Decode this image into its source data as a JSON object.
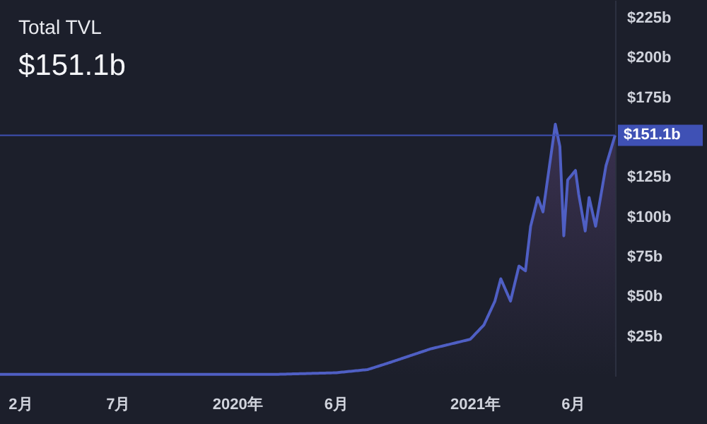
{
  "chart_data": {
    "type": "area",
    "title": "Total TVL",
    "subtitle": "$151.1b",
    "x": [
      "2019-01-01",
      "2019-07-01",
      "2020-01-01",
      "2020-03-01",
      "2020-06-01",
      "2020-07-20",
      "2020-08-20",
      "2020-10-25",
      "2020-12-25",
      "2021-01-15",
      "2021-02-01",
      "2021-02-10",
      "2021-02-25",
      "2021-03-10",
      "2021-03-20",
      "2021-03-28",
      "2021-04-08",
      "2021-04-16",
      "2021-05-05",
      "2021-05-12",
      "2021-05-18",
      "2021-05-24",
      "2021-06-05",
      "2021-06-10",
      "2021-06-20",
      "2021-06-26",
      "2021-07-06",
      "2021-07-22",
      "2021-08-05"
    ],
    "series": [
      {
        "color": "#4f5fc4",
        "values": [
          1,
          1,
          1,
          1,
          2,
          4,
          8,
          17,
          23,
          32,
          47,
          61,
          47,
          69,
          66,
          94,
          112,
          103,
          158,
          144,
          88,
          123,
          129,
          114,
          91,
          112,
          94,
          132,
          151.1
        ]
      }
    ],
    "xlim": [
      "2019-01-01",
      "2021-08-05"
    ],
    "xticks": [
      {
        "value": "2019-02-01",
        "label": "2月"
      },
      {
        "value": "2019-07-01",
        "label": "7月"
      },
      {
        "value": "2020-01-01",
        "label": "2020年"
      },
      {
        "value": "2020-06-01",
        "label": "6月"
      },
      {
        "value": "2021-01-01",
        "label": "2021年"
      },
      {
        "value": "2021-06-01",
        "label": "6月"
      }
    ],
    "ylim": [
      0,
      236
    ],
    "yticks": [
      {
        "value": 25,
        "label": "$25b"
      },
      {
        "value": 50,
        "label": "$50b"
      },
      {
        "value": 75,
        "label": "$75b"
      },
      {
        "value": 100,
        "label": "$100b"
      },
      {
        "value": 125,
        "label": "$125b"
      },
      {
        "value": 175,
        "label": "$175b"
      },
      {
        "value": 200,
        "label": "$200b"
      },
      {
        "value": 225,
        "label": "$225b"
      }
    ],
    "ref_lines": [
      {
        "axis": "y",
        "value": 151.1,
        "label": "$151.1b",
        "color": "#3f51b5"
      }
    ],
    "grid": false
  }
}
